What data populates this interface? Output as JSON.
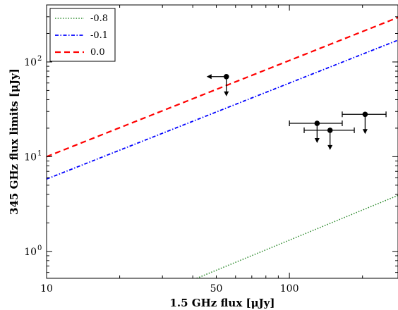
{
  "chart_data": {
    "type": "line",
    "xlabel": "1.5 GHz flux [μJy]",
    "ylabel": "345 GHz flux limits [μJy]",
    "xscale": "log",
    "yscale": "log",
    "xlim": [
      10,
      280
    ],
    "ylim": [
      0.52,
      400
    ],
    "x_tick_labels": [
      {
        "value": 10,
        "label": "10"
      },
      {
        "value": 50,
        "label": "50"
      },
      {
        "value": 100,
        "label": "100"
      }
    ],
    "y_tick_labels": [
      {
        "value": 1,
        "label": "10",
        "exp": "0"
      },
      {
        "value": 10,
        "label": "10",
        "exp": "1"
      },
      {
        "value": 100,
        "label": "10",
        "exp": "2"
      }
    ],
    "legend_position": "top-left",
    "grid": false,
    "series": [
      {
        "name": "-0.8",
        "style": "dotted",
        "color": "#2e8b2e",
        "x": [
          41.5,
          280
        ],
        "y": [
          0.52,
          3.9
        ]
      },
      {
        "name": "-0.1",
        "style": "dashdot",
        "color": "#0000ff",
        "x": [
          10,
          280
        ],
        "y": [
          5.8,
          170
        ]
      },
      {
        "name": "0.0",
        "style": "dashed",
        "color": "#ff0000",
        "x": [
          10,
          280
        ],
        "y": [
          10,
          295
        ]
      }
    ],
    "points": [
      {
        "x": 55,
        "y": 70,
        "xerr_lower_limit": true,
        "y_upper_limit": true
      },
      {
        "x": 130,
        "y": 22.5,
        "xerr": [
          100,
          165
        ],
        "y_upper_limit": true
      },
      {
        "x": 147,
        "y": 19,
        "xerr": [
          115,
          185
        ],
        "y_upper_limit": true
      },
      {
        "x": 205,
        "y": 28,
        "xerr": [
          165,
          250
        ],
        "y_upper_limit": true
      }
    ]
  }
}
